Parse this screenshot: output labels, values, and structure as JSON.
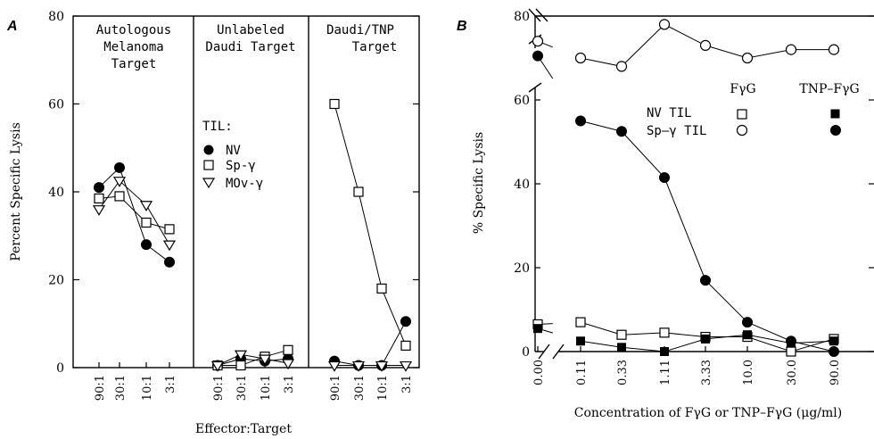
{
  "panels": {
    "a_letter": "A",
    "b_letter": "B"
  },
  "chart_data": [
    {
      "type": "line",
      "panel": "A",
      "ylabel": "Percent Specific Lysis",
      "xlabel": "Effector:Target",
      "ylim": [
        0,
        80
      ],
      "yticks": [
        "0",
        "20",
        "40",
        "60",
        "80"
      ],
      "categories": [
        "90:1",
        "30:1",
        "10:1",
        "3:1"
      ],
      "legend_title": "TIL:",
      "legend_placement": "middle panel, upper-left",
      "subplots": [
        {
          "title_lines": [
            "Autologous",
            "Melanoma",
            "Target"
          ],
          "series": [
            {
              "name": "NV",
              "marker": "filled-circle",
              "values": [
                41,
                45.5,
                28,
                24
              ]
            },
            {
              "name": "Sp-γ",
              "marker": "open-square",
              "values": [
                38.5,
                39,
                33,
                31.5
              ]
            },
            {
              "name": "MOv-γ",
              "marker": "open-triangle-down",
              "values": [
                36,
                42.5,
                37,
                28
              ]
            }
          ]
        },
        {
          "title_lines": [
            "Unlabeled",
            "Daudi Target"
          ],
          "series": [
            {
              "name": "NV",
              "marker": "filled-circle",
              "values": [
                0.5,
                2,
                1.5,
                2
              ]
            },
            {
              "name": "Sp-γ",
              "marker": "open-square",
              "values": [
                0.5,
                0.5,
                2.5,
                4
              ]
            },
            {
              "name": "MOv-γ",
              "marker": "open-triangle-down",
              "values": [
                0.5,
                3,
                2,
                1
              ]
            }
          ]
        },
        {
          "title_lines": [
            "Daudi/TNP",
            "Target"
          ],
          "series": [
            {
              "name": "NV",
              "marker": "filled-circle",
              "values": [
                1.5,
                0.5,
                0.5,
                10.5
              ]
            },
            {
              "name": "Sp-γ",
              "marker": "open-square",
              "values": [
                60,
                40,
                18,
                5
              ]
            },
            {
              "name": "MOv-γ",
              "marker": "open-triangle-down",
              "values": [
                0.5,
                0.5,
                0.5,
                0.5
              ]
            }
          ]
        }
      ]
    },
    {
      "type": "line",
      "panel": "B",
      "ylabel": "% Specific Lysis",
      "xlabel": "Concentration of FγG or TNP–FγG (μg/ml)",
      "ylim": [
        0,
        80
      ],
      "yticks": [
        "0",
        "20",
        "40",
        "60",
        "80"
      ],
      "categories": [
        "0.00",
        "0.11",
        "0.33",
        "1.11",
        "3.33",
        "10.0",
        "30.0",
        "90.0"
      ],
      "axis_breaks": "y-axis and x-axis broken between 0.00 and 0.11",
      "legend": {
        "column_headers": [
          "FγG",
          "TNP–FγG"
        ],
        "rows": [
          {
            "label": "NV TIL",
            "open_marker": "open-square",
            "filled_marker": "filled-square"
          },
          {
            "label": "Sp–γ TIL",
            "open_marker": "open-circle",
            "filled_marker": "filled-circle"
          }
        ],
        "placement": "upper-right"
      },
      "series": [
        {
          "name": "Sp-γ TIL + FγG",
          "marker": "open-circle",
          "values": [
            74,
            70,
            68,
            78,
            73,
            70,
            72,
            72
          ]
        },
        {
          "name": "Sp-γ TIL + TNP–FγG",
          "marker": "filled-circle",
          "values": [
            70.5,
            55,
            52.5,
            41.5,
            17,
            7,
            2.5,
            0
          ]
        },
        {
          "name": "NV TIL + FγG",
          "marker": "open-square",
          "values": [
            6.5,
            7,
            4,
            4.5,
            3.5,
            3.5,
            0,
            3
          ]
        },
        {
          "name": "NV TIL + TNP–FγG",
          "marker": "filled-square",
          "values": [
            5.5,
            2.5,
            1,
            0,
            3,
            4,
            2,
            2.5
          ]
        }
      ]
    }
  ]
}
